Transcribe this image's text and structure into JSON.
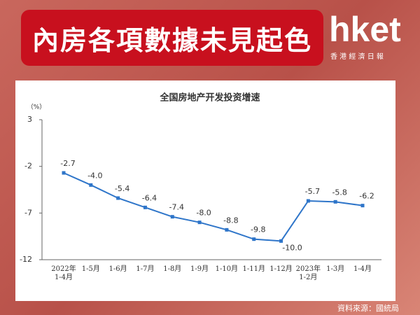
{
  "header": {
    "title": "內房各項數據未見起色"
  },
  "logo": {
    "brand": "hket",
    "subtitle": "香 港 經 濟 日 報"
  },
  "source": "資料來源：國統局",
  "chart_data": {
    "type": "line",
    "title": "全国房地产开发投资增速",
    "y_label": "（%）",
    "categories": [
      "2022年 1-4月",
      "1-5月",
      "1-6月",
      "1-7月",
      "1-8月",
      "1-9月",
      "1-10月",
      "1-11月",
      "1-12月",
      "2023年 1-2月",
      "1-3月",
      "1-4月"
    ],
    "values": [
      -2.7,
      -4.0,
      -5.4,
      -6.4,
      -7.4,
      -8.0,
      -8.8,
      -9.8,
      -10.0,
      -5.7,
      -5.8,
      -6.2
    ],
    "value_labels": [
      "-2.7",
      "-4.0",
      "-5.4",
      "-6.4",
      "-7.4",
      "-8.0",
      "-8.8",
      "-9.8",
      "-10.0",
      "-5.7",
      "-5.8",
      "-6.2"
    ],
    "color": "#2e75c9",
    "ylim": [
      -12,
      3
    ],
    "yticks": [
      3,
      -2,
      -7,
      -12
    ]
  }
}
